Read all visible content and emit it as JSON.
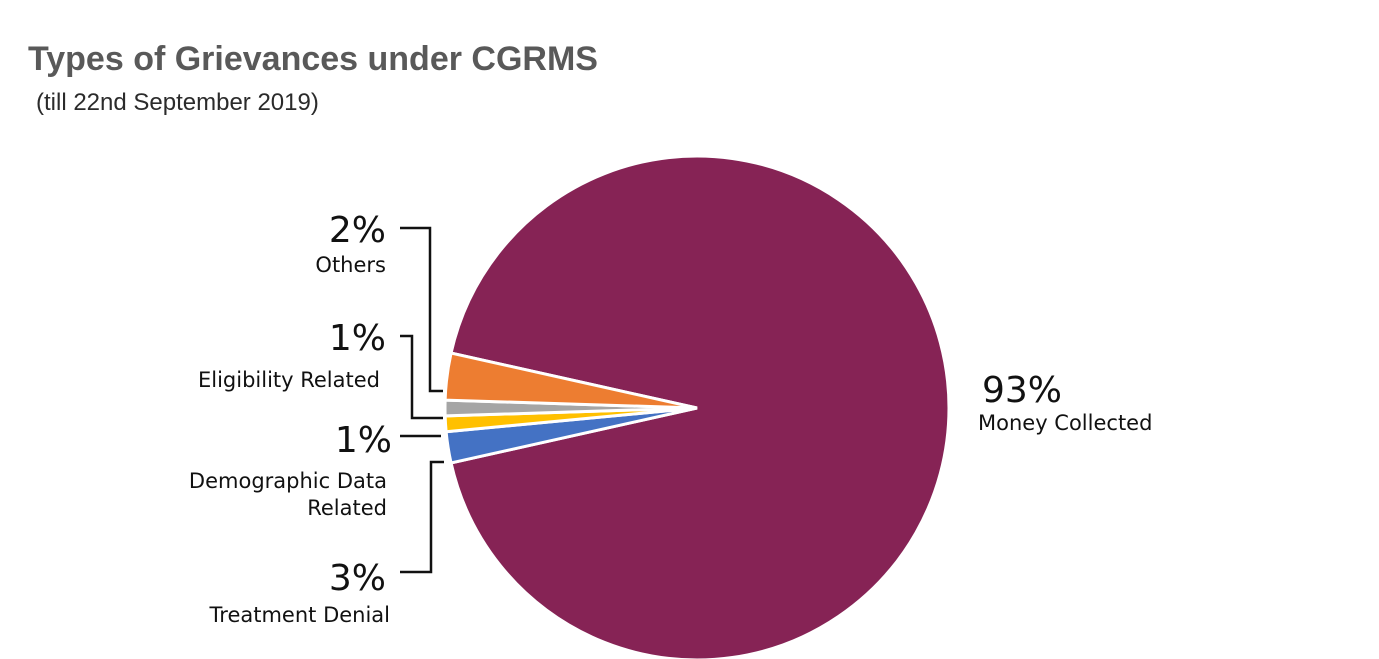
{
  "chart_data": {
    "type": "pie",
    "title": "Types of Grievances under CGRMS",
    "subtitle": "(till 22nd September 2019)",
    "slices": [
      {
        "label": "Money Collected",
        "value": 93,
        "display": "93%",
        "color": "#862355"
      },
      {
        "label": "Others",
        "value": 2,
        "display": "2%",
        "color": "#4472c4"
      },
      {
        "label": "Eligibility Related",
        "value": 1,
        "display": "1%",
        "color": "#ffc000"
      },
      {
        "label": "Demographic Data Related",
        "label_lines": [
          "Demographic Data",
          "Related"
        ],
        "value": 1,
        "display": "1%",
        "color": "#a5a5a5"
      },
      {
        "label": "Treatment Denial",
        "value": 3,
        "display": "3%",
        "color": "#ed7d31"
      }
    ]
  }
}
